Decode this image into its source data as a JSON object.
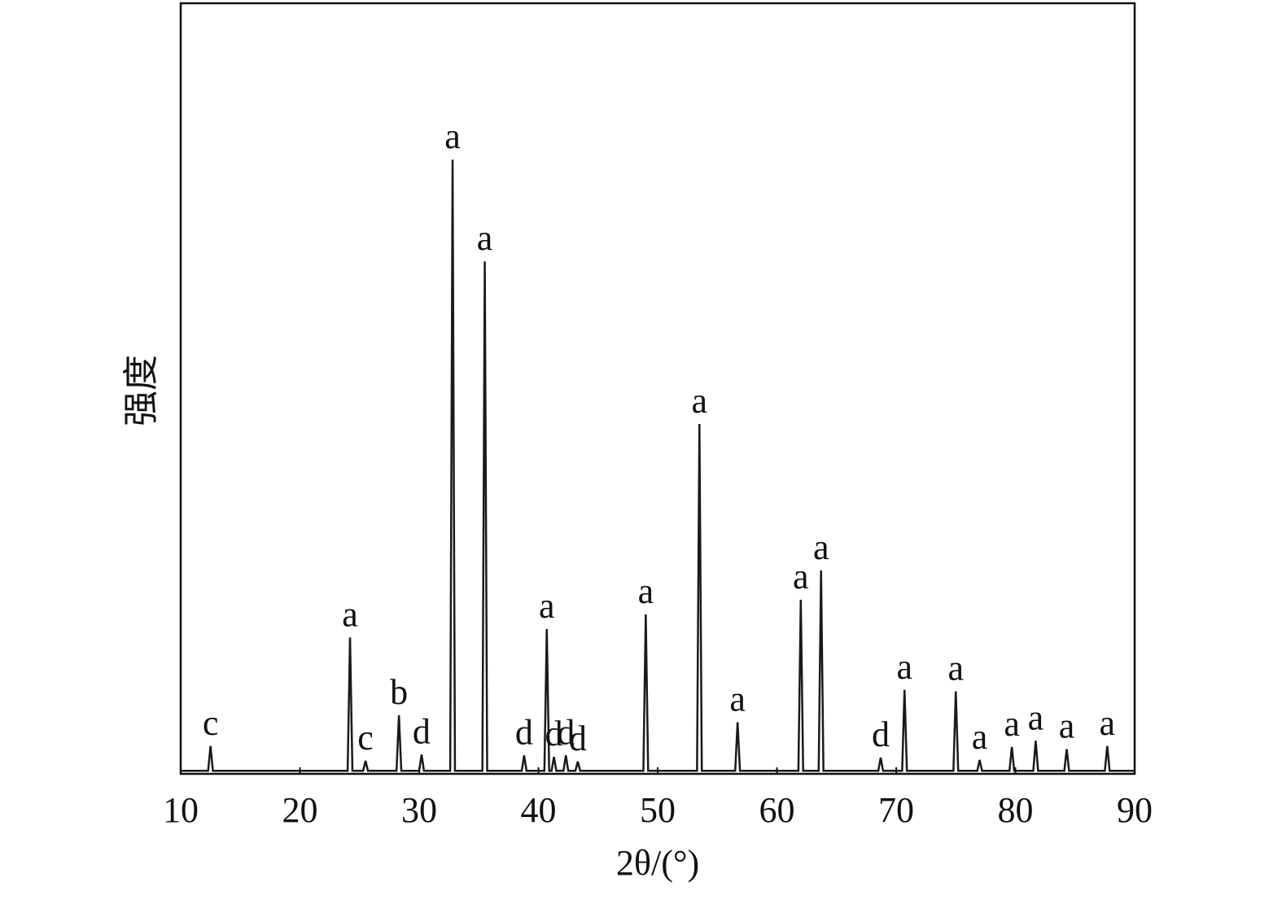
{
  "chart_data": {
    "type": "line",
    "x_label": "2θ/(°)",
    "y_label": "强度",
    "color": "#1a1a1a",
    "grid": false,
    "xlim": [
      10,
      90
    ],
    "xticks": [
      10,
      20,
      30,
      40,
      50,
      60,
      70,
      80,
      90
    ],
    "ylim": [
      0,
      100
    ],
    "x": [
      10,
      12.3,
      12.5,
      12.7,
      24.0,
      24.2,
      24.4,
      25.3,
      25.5,
      25.7,
      28.1,
      28.3,
      28.5,
      30.0,
      30.2,
      30.4,
      32.6,
      32.8,
      33.0,
      35.3,
      35.5,
      35.7,
      38.6,
      38.8,
      39.0,
      40.5,
      40.7,
      40.9,
      41.1,
      41.3,
      41.5,
      42.1,
      42.3,
      42.5,
      43.1,
      43.3,
      43.5,
      48.8,
      49.0,
      49.2,
      53.3,
      53.5,
      53.7,
      56.5,
      56.7,
      56.9,
      61.8,
      62.0,
      62.2,
      63.5,
      63.7,
      63.9,
      68.5,
      68.7,
      68.9,
      70.5,
      70.7,
      70.9,
      74.8,
      75.0,
      75.2,
      76.8,
      77.0,
      77.2,
      79.5,
      79.7,
      79.9,
      81.5,
      81.7,
      81.9,
      84.1,
      84.3,
      84.5,
      87.5,
      87.7,
      87.9,
      90
    ],
    "values": [
      0.4,
      0.4,
      3.6,
      0.4,
      0.4,
      17.7,
      0.4,
      0.4,
      1.7,
      0.4,
      0.4,
      7.6,
      0.4,
      0.4,
      2.5,
      0.4,
      0.4,
      79.7,
      0.4,
      0.4,
      66.5,
      0.4,
      0.4,
      2.4,
      0.4,
      0.4,
      18.8,
      0.4,
      0.4,
      2.2,
      0.4,
      0.4,
      2.4,
      0.4,
      0.4,
      1.6,
      0.4,
      0.4,
      20.7,
      0.4,
      0.4,
      45.4,
      0.4,
      0.4,
      6.7,
      0.4,
      0.4,
      22.6,
      0.4,
      0.4,
      26.4,
      0.4,
      0.4,
      2.1,
      0.4,
      0.4,
      10.9,
      0.4,
      0.4,
      10.7,
      0.4,
      0.4,
      1.8,
      0.4,
      0.4,
      3.5,
      0.4,
      0.4,
      4.3,
      0.4,
      0.4,
      3.2,
      0.4,
      0.4,
      3.6,
      0.4,
      0.4
    ],
    "annotations": [
      {
        "text": "c",
        "x": 12.5
      },
      {
        "text": "a",
        "x": 24.2
      },
      {
        "text": "c",
        "x": 25.5
      },
      {
        "text": "b",
        "x": 28.3
      },
      {
        "text": "d",
        "x": 30.2
      },
      {
        "text": "a",
        "x": 32.8
      },
      {
        "text": "a",
        "x": 35.5
      },
      {
        "text": "d",
        "x": 38.8
      },
      {
        "text": "a",
        "x": 40.7
      },
      {
        "text": "d",
        "x": 41.3
      },
      {
        "text": "d",
        "x": 42.3
      },
      {
        "text": "d",
        "x": 43.3
      },
      {
        "text": "a",
        "x": 49.0
      },
      {
        "text": "a",
        "x": 53.5
      },
      {
        "text": "a",
        "x": 56.7
      },
      {
        "text": "a",
        "x": 62.0
      },
      {
        "text": "a",
        "x": 63.7
      },
      {
        "text": "d",
        "x": 68.7
      },
      {
        "text": "a",
        "x": 70.7
      },
      {
        "text": "a",
        "x": 75.0
      },
      {
        "text": "a",
        "x": 77.0
      },
      {
        "text": "a",
        "x": 79.7
      },
      {
        "text": "a",
        "x": 81.7
      },
      {
        "text": "a",
        "x": 84.3
      },
      {
        "text": "a",
        "x": 87.7
      }
    ]
  }
}
